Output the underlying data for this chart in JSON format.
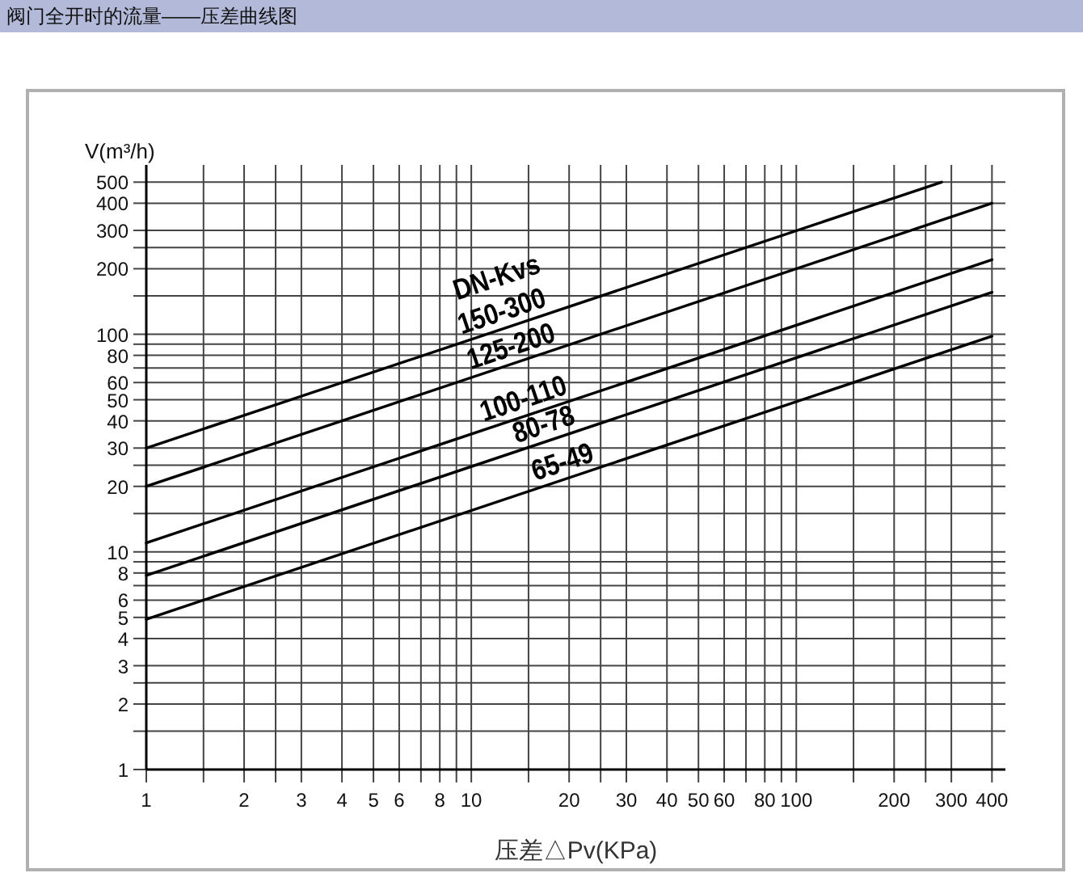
{
  "chart_data": {
    "type": "line",
    "title": "阀门全开时的流量——压差曲线图",
    "xlabel": "压差△Pv(KPa)",
    "ylabel": "V(m³/h)",
    "legend_title": "DN-Kvs",
    "log": "xy",
    "grid": true,
    "xlim": [
      1,
      440
    ],
    "ylim": [
      1,
      600
    ],
    "xticks": [
      1,
      {
        "value": 1.5,
        "label": null
      },
      2,
      {
        "value": 2.5,
        "label": null
      },
      3,
      4,
      5,
      6,
      {
        "value": 7,
        "label": null
      },
      8,
      {
        "value": 9,
        "label": null
      },
      10,
      {
        "value": 15,
        "label": null
      },
      20,
      {
        "value": 25,
        "label": null
      },
      30,
      40,
      50,
      60,
      {
        "value": 70,
        "label": null
      },
      80,
      {
        "value": 90,
        "label": null
      },
      100,
      {
        "value": 150,
        "label": null
      },
      200,
      {
        "value": 250,
        "label": null
      },
      300,
      400
    ],
    "yticks": [
      1,
      {
        "value": 1.5,
        "label": null
      },
      2,
      {
        "value": 2.5,
        "label": null
      },
      3,
      4,
      5,
      6,
      {
        "value": 7,
        "label": null
      },
      8,
      {
        "value": 9,
        "label": null
      },
      10,
      {
        "value": 15,
        "label": null
      },
      20,
      {
        "value": 25,
        "label": null
      },
      30,
      40,
      50,
      60,
      {
        "value": 70,
        "label": null
      },
      80,
      {
        "value": 90,
        "label": null
      },
      100,
      {
        "value": 150,
        "label": null
      },
      200,
      {
        "value": 250,
        "label": null
      },
      300,
      400,
      500
    ],
    "series": [
      {
        "name": "150-300",
        "color": "#000000",
        "x": [
          1,
          280
        ],
        "values": [
          30,
          500
        ]
      },
      {
        "name": "125-200",
        "color": "#000000",
        "x": [
          1,
          400
        ],
        "values": [
          20,
          400
        ]
      },
      {
        "name": "100-110",
        "color": "#000000",
        "x": [
          1,
          400
        ],
        "values": [
          11,
          220
        ]
      },
      {
        "name": "80-78",
        "color": "#000000",
        "x": [
          1,
          400
        ],
        "values": [
          7.8,
          156
        ]
      },
      {
        "name": "65-49",
        "color": "#000000",
        "x": [
          1,
          400
        ],
        "values": [
          4.9,
          98
        ]
      }
    ]
  }
}
